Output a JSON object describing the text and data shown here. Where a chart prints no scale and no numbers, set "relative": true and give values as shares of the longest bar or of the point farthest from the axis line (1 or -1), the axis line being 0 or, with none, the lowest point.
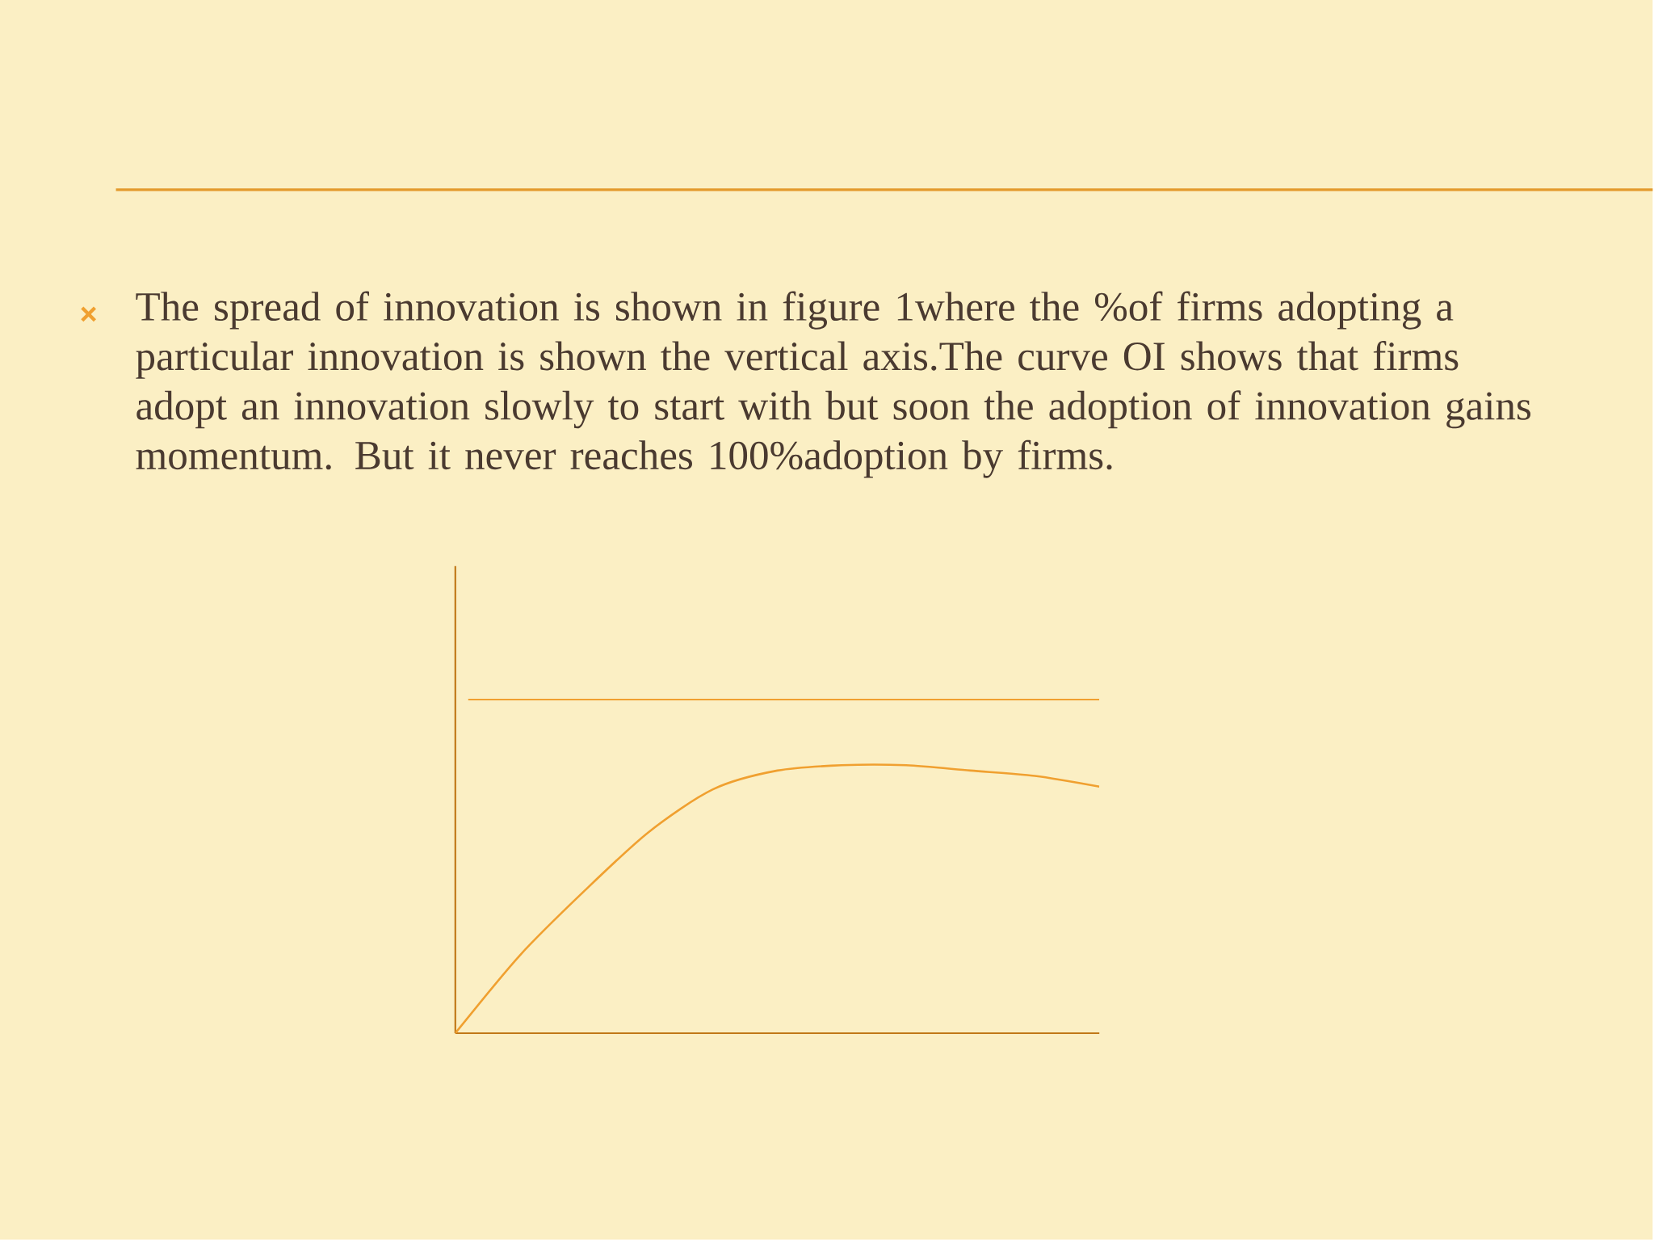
{
  "chart_data": {
    "type": "line",
    "title": "The spread of innovation is shown in figure 1where the %of firms adopting a particular innovation is shown the vertical axis.The curve OI shows that firms adopt an innovation slowly to start with but soon the adoption of innovation gains momentum. But it never reaches 100%adoption by firms.",
    "categories": [
      null,
      null,
      null,
      null,
      null,
      null,
      null,
      null,
      null,
      null,
      null
    ],
    "values": [
      0,
      0.29,
      0.53,
      0.75,
      0.91,
      0.98,
      1.0,
      1.0,
      0.98,
      0.96,
      0.92
    ],
    "color": "#f0a030",
    "relative": true,
    "marker": "none",
    "line_style": "solid",
    "ref_lines": [
      {
        "axis": "y",
        "value": 1.245,
        "color": "#f0a030"
      }
    ]
  }
}
